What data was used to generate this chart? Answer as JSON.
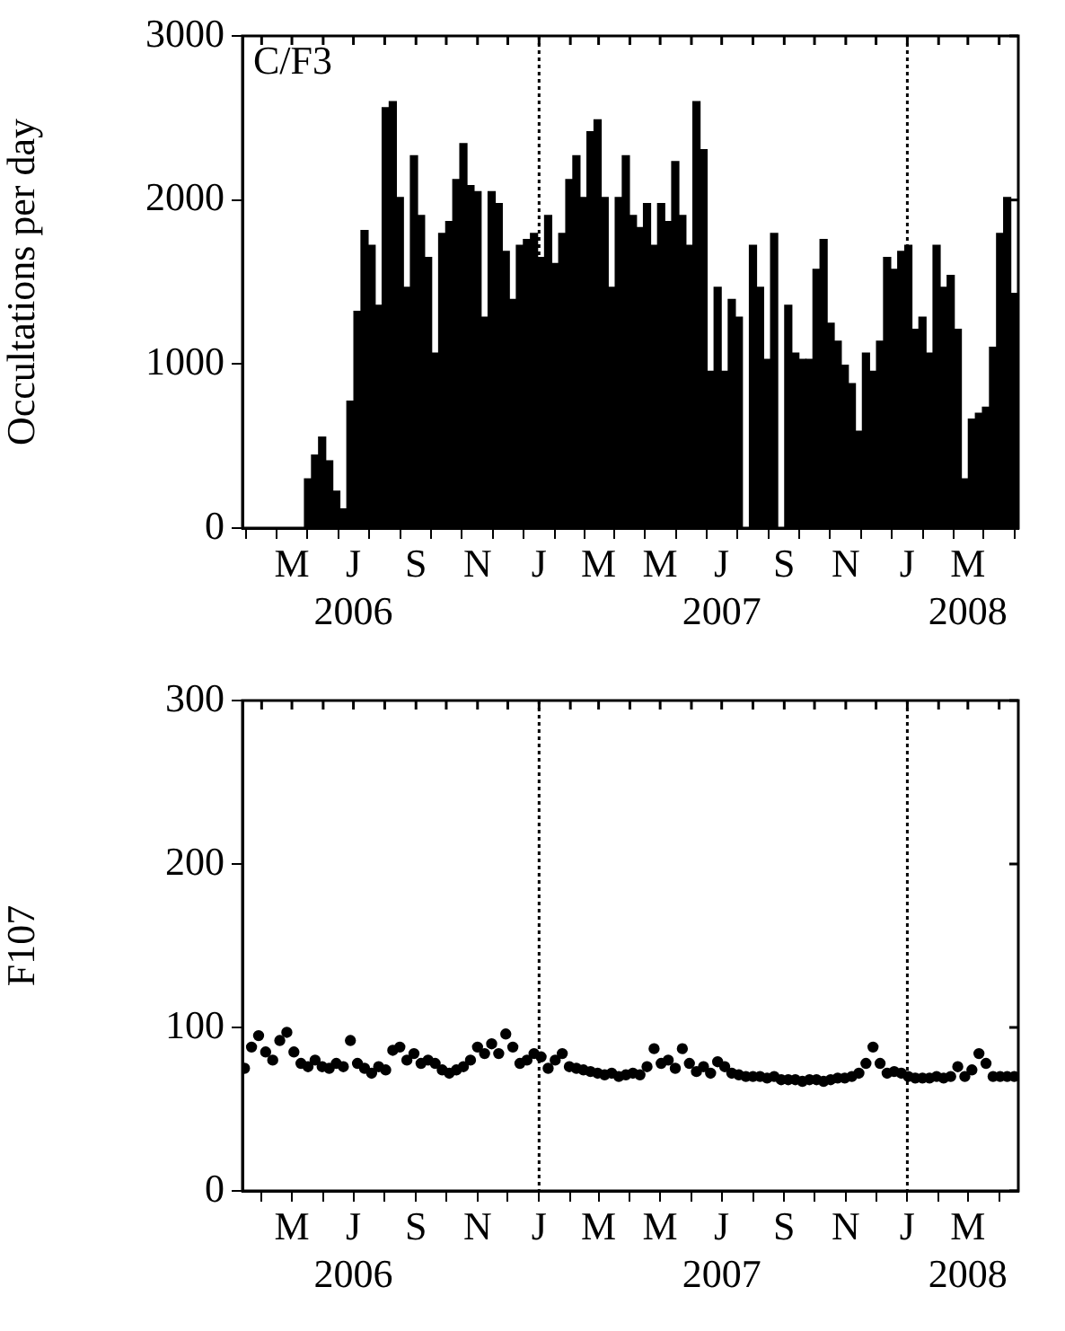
{
  "chart_data": [
    {
      "type": "bar",
      "ylabel": "Occultations per day",
      "color": "#000000",
      "annotations": [
        "C/F3"
      ],
      "xlim": [
        "2006-03-13",
        "2008-04-20"
      ],
      "ylim": [
        0,
        3000
      ],
      "yticks": [
        0,
        1000,
        2000,
        3000
      ],
      "xticks": [
        {
          "value": "2006-04-01",
          "label": null
        },
        {
          "value": "2006-05-01",
          "label": "M"
        },
        {
          "value": "2006-06-01",
          "label": null
        },
        {
          "value": "2006-07-01",
          "label": "J\n2006"
        },
        {
          "value": "2006-08-01",
          "label": null
        },
        {
          "value": "2006-09-01",
          "label": "S"
        },
        {
          "value": "2006-10-01",
          "label": null
        },
        {
          "value": "2006-11-01",
          "label": "N"
        },
        {
          "value": "2006-12-01",
          "label": null
        },
        {
          "value": "2007-01-01",
          "label": "J"
        },
        {
          "value": "2007-02-01",
          "label": null
        },
        {
          "value": "2007-03-01",
          "label": "M"
        },
        {
          "value": "2007-04-01",
          "label": null
        },
        {
          "value": "2007-05-01",
          "label": "M"
        },
        {
          "value": "2007-06-01",
          "label": null
        },
        {
          "value": "2007-07-01",
          "label": "J\n2007"
        },
        {
          "value": "2007-08-01",
          "label": null
        },
        {
          "value": "2007-09-01",
          "label": "S"
        },
        {
          "value": "2007-10-01",
          "label": null
        },
        {
          "value": "2007-11-01",
          "label": "N"
        },
        {
          "value": "2007-12-01",
          "label": null
        },
        {
          "value": "2008-01-01",
          "label": "J"
        },
        {
          "value": "2008-02-01",
          "label": null
        },
        {
          "value": "2008-03-01",
          "label": "M\n2008"
        },
        {
          "value": "2008-04-01",
          "label": null
        }
      ],
      "ref_lines": [
        {
          "axis": "x",
          "value": "2007-01-01",
          "line_style": "dotted"
        },
        {
          "axis": "x",
          "value": "2008-01-01",
          "line_style": "dotted"
        }
      ],
      "x": [
        "2006-05-17",
        "2006-05-24",
        "2006-05-31",
        "2006-06-07",
        "2006-06-14",
        "2006-06-21",
        "2006-06-28",
        "2006-07-05",
        "2006-07-12",
        "2006-07-19",
        "2006-07-26",
        "2006-08-02",
        "2006-08-09",
        "2006-08-16",
        "2006-08-23",
        "2006-08-30",
        "2006-09-06",
        "2006-09-13",
        "2006-09-20",
        "2006-09-27",
        "2006-10-04",
        "2006-10-11",
        "2006-10-18",
        "2006-10-25",
        "2006-11-01",
        "2006-11-08",
        "2006-11-15",
        "2006-11-22",
        "2006-11-29",
        "2006-12-06",
        "2006-12-13",
        "2006-12-20",
        "2006-12-27",
        "2007-01-03",
        "2007-01-10",
        "2007-01-17",
        "2007-01-24",
        "2007-01-31",
        "2007-02-07",
        "2007-02-14",
        "2007-02-21",
        "2007-02-28",
        "2007-03-07",
        "2007-03-14",
        "2007-03-21",
        "2007-03-28",
        "2007-04-04",
        "2007-04-11",
        "2007-04-18",
        "2007-04-25",
        "2007-05-02",
        "2007-05-09",
        "2007-05-16",
        "2007-05-23",
        "2007-05-30",
        "2007-06-06",
        "2007-06-13",
        "2007-06-20",
        "2007-06-27",
        "2007-07-04",
        "2007-07-11",
        "2007-07-18",
        "2007-07-25",
        "2007-08-01",
        "2007-08-08",
        "2007-08-15",
        "2007-08-22",
        "2007-08-29",
        "2007-09-05",
        "2007-09-12",
        "2007-09-19",
        "2007-09-26",
        "2007-10-03",
        "2007-10-10",
        "2007-10-17",
        "2007-10-24",
        "2007-10-31",
        "2007-11-07",
        "2007-11-14",
        "2007-11-21",
        "2007-11-28",
        "2007-12-05",
        "2007-12-12",
        "2007-12-19",
        "2007-12-26",
        "2008-01-02",
        "2008-01-09",
        "2008-01-16",
        "2008-01-23",
        "2008-01-30",
        "2008-02-06",
        "2008-02-13",
        "2008-02-20",
        "2008-02-27",
        "2008-03-05",
        "2008-03-12",
        "2008-03-19",
        "2008-03-26",
        "2008-04-02",
        "2008-04-09",
        "2008-04-16"
      ],
      "values": [
        300,
        445,
        555,
        410,
        225,
        117,
        774,
        1321,
        1814,
        1723,
        1358,
        2562,
        2600,
        2015,
        1467,
        2270,
        1905,
        1650,
        1066,
        1796,
        1869,
        2124,
        2343,
        2088,
        2051,
        1285,
        2051,
        1978,
        1686,
        1394,
        1723,
        1759,
        1796,
        1650,
        1905,
        1613,
        1796,
        2124,
        2270,
        2015,
        2416,
        2489,
        2015,
        1467,
        2015,
        2270,
        1905,
        1832,
        1978,
        1723,
        1978,
        1869,
        2234,
        1905,
        1723,
        2600,
        2307,
        956,
        1467,
        956,
        1394,
        1285,
        0,
        1723,
        1467,
        1029,
        1796,
        0,
        1358,
        1066,
        1029,
        1029,
        1577,
        1759,
        1248,
        1139,
        993,
        880,
        591,
        1066,
        956,
        1139,
        1650,
        1577,
        1686,
        1723,
        1212,
        1285,
        1066,
        1723,
        1467,
        1540,
        1212,
        300,
        664,
        700,
        737,
        1102,
        1796,
        2015,
        1431
      ]
    },
    {
      "type": "scatter",
      "ylabel": "F107",
      "color": "#000000",
      "marker": "circle",
      "xlim": [
        "2006-03-13",
        "2008-04-20"
      ],
      "ylim": [
        0,
        300
      ],
      "yticks": [
        0,
        100,
        200,
        300
      ],
      "xticks": [
        {
          "value": "2006-04-01",
          "label": null
        },
        {
          "value": "2006-05-01",
          "label": "M"
        },
        {
          "value": "2006-06-01",
          "label": null
        },
        {
          "value": "2006-07-01",
          "label": "J\n2006"
        },
        {
          "value": "2006-08-01",
          "label": null
        },
        {
          "value": "2006-09-01",
          "label": "S"
        },
        {
          "value": "2006-10-01",
          "label": null
        },
        {
          "value": "2006-11-01",
          "label": "N"
        },
        {
          "value": "2006-12-01",
          "label": null
        },
        {
          "value": "2007-01-01",
          "label": "J"
        },
        {
          "value": "2007-02-01",
          "label": null
        },
        {
          "value": "2007-03-01",
          "label": "M"
        },
        {
          "value": "2007-04-01",
          "label": null
        },
        {
          "value": "2007-05-01",
          "label": "M"
        },
        {
          "value": "2007-06-01",
          "label": null
        },
        {
          "value": "2007-07-01",
          "label": "J\n2007"
        },
        {
          "value": "2007-08-01",
          "label": null
        },
        {
          "value": "2007-09-01",
          "label": "S"
        },
        {
          "value": "2007-10-01",
          "label": null
        },
        {
          "value": "2007-11-01",
          "label": "N"
        },
        {
          "value": "2007-12-01",
          "label": null
        },
        {
          "value": "2008-01-01",
          "label": "J"
        },
        {
          "value": "2008-02-01",
          "label": null
        },
        {
          "value": "2008-03-01",
          "label": "M\n2008"
        },
        {
          "value": "2008-04-01",
          "label": null
        }
      ],
      "ref_lines": [
        {
          "axis": "x",
          "value": "2007-01-01",
          "line_style": "dotted"
        },
        {
          "axis": "x",
          "value": "2008-01-01",
          "line_style": "dotted"
        }
      ],
      "x": [
        "2006-03-15",
        "2006-03-22",
        "2006-03-29",
        "2006-04-05",
        "2006-04-12",
        "2006-04-19",
        "2006-04-26",
        "2006-05-03",
        "2006-05-10",
        "2006-05-17",
        "2006-05-24",
        "2006-05-31",
        "2006-06-07",
        "2006-06-14",
        "2006-06-21",
        "2006-06-28",
        "2006-07-05",
        "2006-07-12",
        "2006-07-19",
        "2006-07-26",
        "2006-08-02",
        "2006-08-09",
        "2006-08-16",
        "2006-08-23",
        "2006-08-30",
        "2006-09-06",
        "2006-09-13",
        "2006-09-20",
        "2006-09-27",
        "2006-10-04",
        "2006-10-11",
        "2006-10-18",
        "2006-10-25",
        "2006-11-01",
        "2006-11-08",
        "2006-11-15",
        "2006-11-22",
        "2006-11-29",
        "2006-12-06",
        "2006-12-13",
        "2006-12-20",
        "2006-12-27",
        "2007-01-03",
        "2007-01-10",
        "2007-01-17",
        "2007-01-24",
        "2007-01-31",
        "2007-02-07",
        "2007-02-14",
        "2007-02-21",
        "2007-02-28",
        "2007-03-07",
        "2007-03-14",
        "2007-03-21",
        "2007-03-28",
        "2007-04-04",
        "2007-04-11",
        "2007-04-18",
        "2007-04-25",
        "2007-05-02",
        "2007-05-09",
        "2007-05-16",
        "2007-05-23",
        "2007-05-30",
        "2007-06-06",
        "2007-06-13",
        "2007-06-20",
        "2007-06-27",
        "2007-07-04",
        "2007-07-11",
        "2007-07-18",
        "2007-07-25",
        "2007-08-01",
        "2007-08-08",
        "2007-08-15",
        "2007-08-22",
        "2007-08-29",
        "2007-09-05",
        "2007-09-12",
        "2007-09-19",
        "2007-09-26",
        "2007-10-03",
        "2007-10-10",
        "2007-10-17",
        "2007-10-24",
        "2007-10-31",
        "2007-11-07",
        "2007-11-14",
        "2007-11-21",
        "2007-11-28",
        "2007-12-05",
        "2007-12-12",
        "2007-12-19",
        "2007-12-26",
        "2008-01-02",
        "2008-01-09",
        "2008-01-16",
        "2008-01-23",
        "2008-01-30",
        "2008-02-06",
        "2008-02-13",
        "2008-02-20",
        "2008-02-27",
        "2008-03-05",
        "2008-03-12",
        "2008-03-19",
        "2008-03-26",
        "2008-04-02",
        "2008-04-09",
        "2008-04-16"
      ],
      "values": [
        75,
        88,
        95,
        85,
        80,
        92,
        97,
        85,
        78,
        76,
        80,
        76,
        75,
        78,
        76,
        92,
        78,
        75,
        72,
        76,
        74,
        86,
        88,
        80,
        84,
        78,
        80,
        78,
        74,
        72,
        74,
        76,
        80,
        88,
        84,
        90,
        84,
        96,
        88,
        78,
        80,
        84,
        82,
        75,
        80,
        84,
        76,
        75,
        74,
        73,
        72,
        71,
        72,
        70,
        71,
        72,
        71,
        76,
        87,
        78,
        80,
        75,
        87,
        78,
        73,
        76,
        72,
        79,
        76,
        72,
        71,
        70,
        70,
        70,
        69,
        70,
        68,
        68,
        68,
        67,
        68,
        68,
        67,
        68,
        69,
        69,
        70,
        72,
        78,
        88,
        78,
        72,
        73,
        72,
        70,
        69,
        69,
        69,
        70,
        69,
        70,
        76,
        70,
        74,
        84,
        78,
        70,
        70,
        70,
        70
      ]
    }
  ]
}
